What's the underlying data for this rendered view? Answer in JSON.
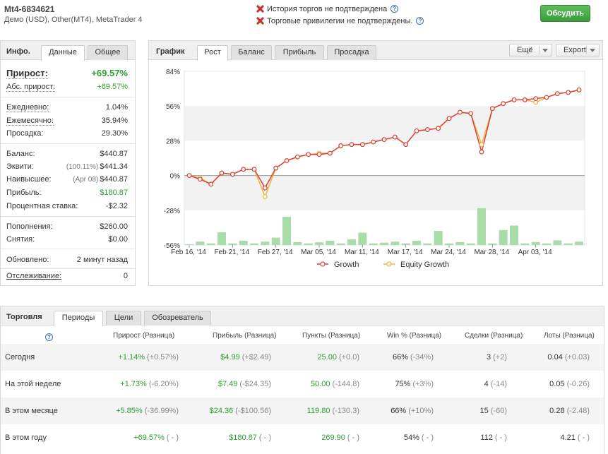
{
  "header": {
    "account": "Mt4-6834621",
    "subtitle": "Демо (USD), Other(MT4), MetaTrader 4",
    "warnings": [
      "История торгов не подтверждена",
      "Торговые привилегии не подтверждены."
    ],
    "discuss_button": "Обсудить"
  },
  "info": {
    "head": "Инфо.",
    "tabs": [
      "Данные",
      "Общее"
    ],
    "growth_label": "Прирост:",
    "growth_value": "+69.57%",
    "abs_label": "Абс. прирост:",
    "abs_value": "+69.57%",
    "daily_label": "Ежедневно:",
    "daily_value": "1.04%",
    "monthly_label": "Ежемесячно:",
    "monthly_value": "35.94%",
    "drawdown_label": "Просадка:",
    "drawdown_value": "29.30%",
    "balance_label": "Баланс:",
    "balance_value": "$440.87",
    "equity_label": "Эквити:",
    "equity_pct": "(100.11%)",
    "equity_value": "$441.34",
    "highest_label": "Наивысшее:",
    "highest_date": "(Apr 08)",
    "highest_value": "$440.87",
    "profit_label": "Прибыль:",
    "profit_value": "$180.87",
    "interest_label": "Процентная ставка:",
    "interest_value": "-$2.32",
    "deposits_label": "Пополнения:",
    "deposits_value": "$260.00",
    "withdrawals_label": "Снятия:",
    "withdrawals_value": "$0.00",
    "updated_label": "Обновлено:",
    "updated_value": "2 минут назад",
    "tracking_label": "Отслеживание:",
    "tracking_value": "0"
  },
  "chart_panel": {
    "head": "График",
    "tabs": [
      "Рост",
      "Баланс",
      "Прибыль",
      "Просадка"
    ],
    "more_button": "Ещё",
    "export_button": "Export"
  },
  "chart_data": {
    "type": "line",
    "y_ticks": [
      "84%",
      "56%",
      "28%",
      "0%",
      "-28%",
      "-56%"
    ],
    "ylim": [
      -56,
      84
    ],
    "x_ticks": [
      "Feb 16, '14",
      "Feb 21, '14",
      "Feb 27, '14",
      "Mar 05, '14",
      "Mar 11, '14",
      "Mar 17, '14",
      "Mar 24, '14",
      "Mar 28, '14",
      "Apr 03, '14"
    ],
    "x_tick_index": [
      0,
      4,
      8,
      12,
      16,
      20,
      24,
      28,
      32
    ],
    "series": [
      {
        "name": "Growth",
        "color": "#d9413a",
        "values": [
          0,
          -3,
          -7,
          2,
          1,
          5,
          5,
          -10,
          6,
          12,
          15,
          17,
          17,
          18,
          24,
          25,
          25,
          27,
          29,
          31,
          25,
          36,
          37,
          38,
          46,
          51,
          50,
          19,
          54,
          58,
          61,
          61,
          62,
          63,
          66,
          67,
          69
        ]
      },
      {
        "name": "Equity Growth",
        "color": "#f0b43c",
        "values": [
          0,
          -2,
          -7,
          2,
          1,
          5,
          5,
          -17,
          6,
          12,
          15,
          17,
          18,
          18,
          24,
          25,
          25,
          27,
          29,
          31,
          25,
          36,
          37,
          38,
          46,
          51,
          50,
          25,
          54,
          58,
          61,
          61,
          59,
          63,
          66,
          67,
          69
        ]
      }
    ],
    "bars": [
      0.5,
      2.5,
      1.2,
      9.5,
      1.2,
      3.2,
      1.2,
      2.5,
      5.5,
      21,
      2.2,
      1.2,
      2,
      3.2,
      1.2,
      4.2,
      9.2,
      1.2,
      1.8,
      2.5,
      1.2,
      3.2,
      1.2,
      10.5,
      1.2,
      2.2,
      1.2,
      27.5,
      1.2,
      11.2,
      14.5,
      1.2,
      2.2,
      1.2,
      3.5,
      1.2,
      2.5
    ]
  },
  "trading": {
    "head": "Торговля",
    "tabs": [
      "Периоды",
      "Цели",
      "Обозреватель"
    ],
    "columns": [
      "Прирост (Разница)",
      "Прибыль (Разница)",
      "Пункты (Разница)",
      "Win % (Разница)",
      "Сделки (Разница)",
      "Лоты (Разница)"
    ],
    "rows": [
      {
        "label": "Сегодня",
        "growth": "+1.14%",
        "growth_d": "(+0.57%)",
        "profit": "$4.99",
        "profit_d": "(+$2.49)",
        "pips": "25.00",
        "pips_d": "(+0.0)",
        "win": "66%",
        "win_d": "(-34%)",
        "trades": "3",
        "trades_d": "(+2)",
        "lots": "0.04",
        "lots_d": "(+0.03)"
      },
      {
        "label": "На этой неделе",
        "growth": "+1.73%",
        "growth_d": "(-6.20%)",
        "profit": "$7.49",
        "profit_d": "(-$24.35)",
        "pips": "50.00",
        "pips_d": "(-144.8)",
        "win": "75%",
        "win_d": "(+3%)",
        "trades": "4",
        "trades_d": "(-14)",
        "lots": "0.05",
        "lots_d": "(-0.26)"
      },
      {
        "label": "В этом месяце",
        "growth": "+5.85%",
        "growth_d": "(-36.99%)",
        "profit": "$24.36",
        "profit_d": "(-$100.56)",
        "pips": "119.80",
        "pips_d": "(-130.3)",
        "win": "66%",
        "win_d": "(+10%)",
        "trades": "15",
        "trades_d": "(-60)",
        "lots": "0.28",
        "lots_d": "(-2.48)"
      },
      {
        "label": "В этом году",
        "growth": "+69.57%",
        "growth_d": "( - )",
        "profit": "$180.87",
        "profit_d": "( - )",
        "pips": "269.90",
        "pips_d": "( - )",
        "win": "54%",
        "win_d": "( - )",
        "trades": "112",
        "trades_d": "( - )",
        "lots": "4.21",
        "lots_d": "( - )"
      }
    ]
  }
}
